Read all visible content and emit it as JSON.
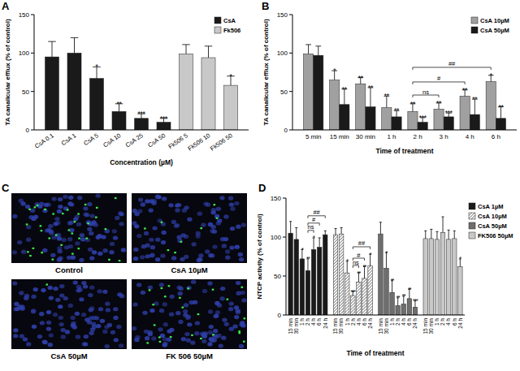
{
  "chart_data": [
    {
      "type": "bar",
      "title": "A",
      "y_label": "TA canalicular efflux (% of control)",
      "x_label": "Concentration (µM)",
      "categories": [
        "CsA 0.1",
        "CsA 1",
        "CsA 5",
        "CsA 10",
        "CsA 25",
        "CsA 50",
        "Fk506 5",
        "Fk506 10",
        "Fk506 50"
      ],
      "ylim": [
        0,
        150
      ],
      "yticks": [
        0,
        50,
        100,
        150
      ],
      "grid": false,
      "legend": "top-right",
      "series": [
        {
          "name": "CsA",
          "color": "#1a1a1a",
          "values": [
            95,
            100,
            67,
            24,
            15,
            10,
            null,
            null,
            null
          ],
          "errors": [
            20,
            20,
            15,
            10,
            6,
            5,
            null,
            null,
            null
          ],
          "significance": [
            null,
            null,
            "*",
            "**",
            "***",
            "***",
            null,
            null,
            null
          ]
        },
        {
          "name": "Fk506",
          "color": "#c8c8c8",
          "values": [
            null,
            null,
            null,
            null,
            null,
            null,
            99,
            94,
            58
          ],
          "errors": [
            null,
            null,
            null,
            null,
            null,
            null,
            12,
            15,
            12
          ],
          "significance": [
            null,
            null,
            null,
            null,
            null,
            null,
            null,
            null,
            "*"
          ]
        }
      ]
    },
    {
      "type": "bar",
      "title": "B",
      "y_label": "TA canalicular efflux (% of control)",
      "x_label": "Time of treatment",
      "categories": [
        "5 min",
        "15 min",
        "30 min",
        "1 h",
        "2 h",
        "3 h",
        "4 h",
        "6 h"
      ],
      "ylim": [
        0,
        150
      ],
      "yticks": [
        0,
        50,
        100,
        150
      ],
      "grid": false,
      "legend": "top-right",
      "series": [
        {
          "name": "CsA 10µM",
          "color": "#a0a0a0",
          "values": [
            99,
            65,
            60,
            29,
            24,
            27,
            44,
            63
          ],
          "errors": [
            12,
            12,
            8,
            15,
            10,
            8,
            8,
            8
          ],
          "significance": [
            null,
            "*",
            "**",
            "**",
            "**",
            "**",
            "**",
            "*"
          ],
          "brackets": [
            {
              "from": "2 h",
              "to": "3 h",
              "label": "ns"
            },
            {
              "from": "2 h",
              "to": "4 h",
              "label": "#"
            },
            {
              "from": "2 h",
              "to": "6 h",
              "label": "##"
            }
          ]
        },
        {
          "name": "CsA 50µM",
          "color": "#1a1a1a",
          "values": [
            97,
            33,
            30,
            17,
            10,
            17,
            20,
            15
          ],
          "errors": [
            12,
            20,
            25,
            8,
            6,
            5,
            20,
            15
          ],
          "significance": [
            null,
            "**",
            "**",
            "**",
            "***",
            "***",
            "**",
            "**"
          ]
        }
      ]
    },
    {
      "type": "image",
      "title": "C",
      "images": [
        {
          "label": "Control"
        },
        {
          "label": "CsA 10µM"
        },
        {
          "label": "CsA 50µM"
        },
        {
          "label": "FK 506 50µM"
        }
      ]
    },
    {
      "type": "bar",
      "title": "D",
      "y_label": "NTCP activity (% of control)",
      "x_label": "Time of treatment",
      "categories": [
        "15 min",
        "30 min",
        "1 h",
        "2 h",
        "4 h",
        "6 h",
        "24 h",
        "15 min",
        "30 min",
        "1 h",
        "2 h",
        "4 h",
        "6 h",
        "24 h",
        "15 min",
        "30 min",
        "1 h",
        "2 h",
        "4 h",
        "6 h",
        "24 h",
        "15 min",
        "30 min",
        "1 h",
        "2 h",
        "4 h",
        "6 h",
        "24 h"
      ],
      "ylim": [
        0,
        150
      ],
      "yticks": [
        0,
        50,
        100,
        150
      ],
      "grid": false,
      "legend": "right",
      "series": [
        {
          "name": "CsA 1µM",
          "color": "#1a1a1a",
          "values": [
            105,
            97,
            72,
            57,
            84,
            87,
            103,
            null,
            null,
            null,
            null,
            null,
            null,
            null,
            null,
            null,
            null,
            null,
            null,
            null,
            null,
            null,
            null,
            null,
            null,
            null,
            null,
            null
          ],
          "errors": [
            15,
            15,
            12,
            15,
            15,
            12,
            5,
            null,
            null,
            null,
            null,
            null,
            null,
            null,
            null,
            null,
            null,
            null,
            null,
            null,
            null,
            null,
            null,
            null,
            null,
            null,
            null,
            null
          ],
          "significance": [
            null,
            null,
            "*",
            "**",
            "*",
            null,
            null,
            null,
            null,
            null,
            null,
            null,
            null,
            null,
            null,
            null,
            null,
            null,
            null,
            null,
            null,
            null,
            null,
            null,
            null,
            null,
            null,
            null
          ],
          "brackets": [
            {
              "from": "2 h",
              "to": "4 h",
              "label": "ns"
            },
            {
              "from": "2 h",
              "to": "6 h",
              "label": "#"
            },
            {
              "from": "2 h",
              "to": "24 h",
              "label": "##"
            }
          ]
        },
        {
          "name": "CsA 10µM",
          "color": "#ffffff",
          "marker": "hatch",
          "values": [
            null,
            null,
            null,
            null,
            null,
            null,
            null,
            103,
            104,
            54,
            25,
            42,
            47,
            63,
            null,
            null,
            null,
            null,
            null,
            null,
            null,
            null,
            null,
            null,
            null,
            null,
            null,
            null
          ],
          "errors": [
            null,
            null,
            null,
            null,
            null,
            null,
            null,
            8,
            8,
            15,
            5,
            12,
            15,
            15,
            null,
            null,
            null,
            null,
            null,
            null,
            null,
            null,
            null,
            null,
            null,
            null,
            null,
            null
          ],
          "significance": [
            null,
            null,
            null,
            null,
            null,
            null,
            null,
            null,
            null,
            "*",
            "***",
            "**",
            "**",
            "*",
            null,
            null,
            null,
            null,
            null,
            null,
            null,
            null,
            null,
            null,
            null,
            null,
            null,
            null
          ],
          "brackets": [
            {
              "from": "2 h",
              "to": "4 h",
              "label": "ns"
            },
            {
              "from": "2 h",
              "to": "6 h",
              "label": "#"
            },
            {
              "from": "2 h",
              "to": "24 h",
              "label": "##"
            }
          ]
        },
        {
          "name": "CsA 50µM",
          "color": "#6e6e6e",
          "values": [
            null,
            null,
            null,
            null,
            null,
            null,
            null,
            null,
            null,
            null,
            null,
            null,
            null,
            null,
            104,
            60,
            29,
            12,
            14,
            21,
            10,
            null,
            null,
            null,
            null,
            null,
            null,
            null
          ],
          "errors": [
            null,
            null,
            null,
            null,
            null,
            null,
            null,
            null,
            null,
            null,
            null,
            null,
            null,
            null,
            15,
            20,
            15,
            10,
            10,
            12,
            8,
            null,
            null,
            null,
            null,
            null,
            null,
            null
          ],
          "significance": [
            null,
            null,
            null,
            null,
            null,
            null,
            null,
            null,
            null,
            null,
            null,
            null,
            null,
            null,
            null,
            "*",
            "**",
            "**",
            "**",
            "**",
            "***",
            null,
            null,
            null,
            null,
            null,
            null,
            null
          ]
        },
        {
          "name": "FK506 50µM",
          "color": "#c8c8c8",
          "values": [
            null,
            null,
            null,
            null,
            null,
            null,
            null,
            null,
            null,
            null,
            null,
            null,
            null,
            null,
            null,
            null,
            null,
            null,
            null,
            null,
            null,
            98,
            98,
            97,
            106,
            97,
            98,
            62
          ],
          "errors": [
            null,
            null,
            null,
            null,
            null,
            null,
            null,
            null,
            null,
            null,
            null,
            null,
            null,
            null,
            null,
            null,
            null,
            null,
            null,
            null,
            null,
            10,
            12,
            10,
            20,
            12,
            10,
            10
          ],
          "significance": [
            null,
            null,
            null,
            null,
            null,
            null,
            null,
            null,
            null,
            null,
            null,
            null,
            null,
            null,
            null,
            null,
            null,
            null,
            null,
            null,
            null,
            null,
            null,
            null,
            null,
            null,
            null,
            "*"
          ]
        }
      ]
    }
  ]
}
